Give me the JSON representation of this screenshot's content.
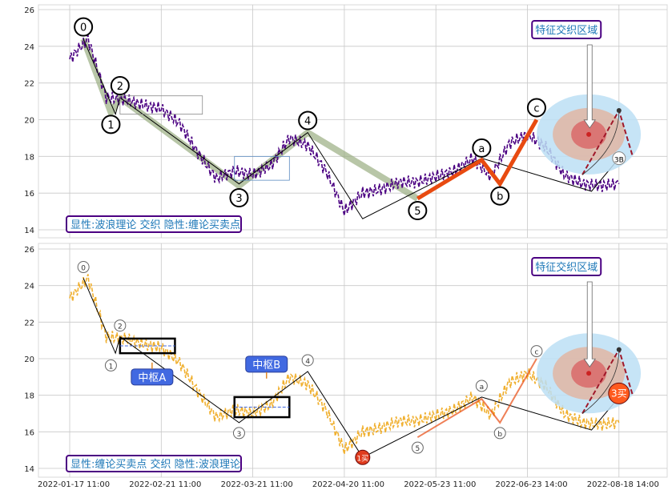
{
  "chart_data": [
    {
      "type": "line",
      "panel": "top",
      "ylim": [
        13.5,
        26.2
      ],
      "yticks": [
        14,
        16,
        18,
        20,
        22,
        24,
        26
      ],
      "grid": true,
      "series": [],
      "price_x": [
        0,
        0.2,
        0.4,
        0.6,
        0.8,
        1,
        1.2,
        1.4,
        1.6,
        1.8,
        2,
        2.2,
        2.4,
        2.6,
        2.8,
        3,
        3.2,
        3.4,
        3.6,
        3.8,
        4,
        4.2,
        4.4,
        4.6,
        4.8,
        5,
        5.2,
        5.4,
        5.6,
        5.8,
        6
      ],
      "price_y": [
        23.3,
        24.4,
        21.2,
        21.1,
        20.8,
        20.6,
        19.8,
        18.2,
        16.8,
        17.2,
        17.0,
        17.5,
        19.0,
        18.6,
        17.2,
        15.0,
        16.0,
        16.2,
        16.6,
        16.6,
        16.9,
        17.2,
        17.9,
        16.9,
        18.7,
        19.2,
        18.5,
        17.0,
        16.5,
        16.4,
        16.5
      ],
      "waves": [
        {
          "label": "0",
          "x": 0.15,
          "y": 24.4
        },
        {
          "label": "1",
          "x": 0.45,
          "y": 20.4
        },
        {
          "label": "2",
          "x": 0.55,
          "y": 21.2
        },
        {
          "label": "3",
          "x": 1.85,
          "y": 16.4
        },
        {
          "label": "4",
          "x": 2.6,
          "y": 19.3
        },
        {
          "label": "5",
          "x": 3.8,
          "y": 15.7
        },
        {
          "label": "a",
          "x": 4.5,
          "y": 17.8
        },
        {
          "label": "b",
          "x": 4.7,
          "y": 16.5
        },
        {
          "label": "c",
          "x": 5.1,
          "y": 20.0
        },
        {
          "label": "3B",
          "x": 6.0,
          "y": 17.9
        }
      ],
      "annotation": "特征交织区域",
      "caption": "显性:波浪理论 交织 隐性:缠论买卖点"
    },
    {
      "type": "line",
      "panel": "bottom",
      "ylim": [
        13.5,
        26.2
      ],
      "yticks": [
        14,
        16,
        18,
        20,
        22,
        24,
        26
      ],
      "grid": true,
      "series": [],
      "chan_points": [
        {
          "label": "0",
          "x": 0.15,
          "y": 24.4
        },
        {
          "label": "1",
          "x": 0.45,
          "y": 20.2
        },
        {
          "label": "2",
          "x": 0.55,
          "y": 21.2
        },
        {
          "label": "3",
          "x": 1.85,
          "y": 16.5
        },
        {
          "label": "4",
          "x": 2.6,
          "y": 19.3
        },
        {
          "label": "1买",
          "x": 3.2,
          "y": 14.6
        },
        {
          "label": "5",
          "x": 3.8,
          "y": 15.7
        },
        {
          "label": "a",
          "x": 4.5,
          "y": 17.9
        },
        {
          "label": "b",
          "x": 4.7,
          "y": 16.5
        },
        {
          "label": "c",
          "x": 5.1,
          "y": 19.8
        },
        {
          "label": "3买",
          "x": 6.0,
          "y": 18.1
        }
      ],
      "zhongshu": [
        {
          "label": "中枢A"
        },
        {
          "label": "中枢B"
        }
      ],
      "annotation": "特征交织区域",
      "caption": "显性:缠论买卖点 交织 隐性:波浪理论"
    }
  ],
  "x_axis": {
    "tick_labels": [
      "2022-01-17 11:00",
      "2022-02-21 11:00",
      "2022-03-21 11:00",
      "2022-04-20 11:00",
      "2022-05-23 11:00",
      "2022-06-23 14:00",
      "2022-08-18 14:00"
    ],
    "tick_pos": [
      0,
      1,
      2,
      3,
      4,
      5,
      6
    ]
  },
  "colors": {
    "grid": "#c8c8c8",
    "wave_price": "#4b0082",
    "chan_price": "#f0b030",
    "zigzag": "#000000",
    "wave_highlight": "#9aae82",
    "abc_trend": "#e84a10",
    "caption_border": "#4b0082",
    "caption_text": "#1e78b8",
    "annotation_text": "#1e78b8",
    "zhongshu_box": "#4169e1",
    "buy_point": "#e03c1e",
    "sell_point": "#ff5a1e",
    "zone_outer": "#bcdff5",
    "zone_mid": "#dfb8a8",
    "zone_inner": "#d96a6a"
  }
}
